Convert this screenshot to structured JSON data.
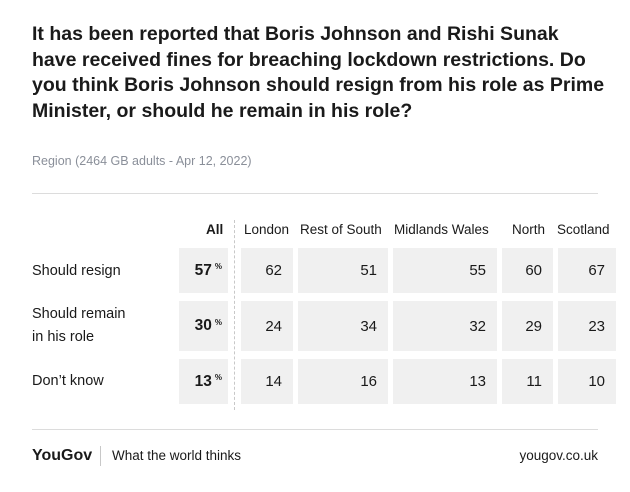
{
  "chart_data": {
    "type": "table",
    "title": "It has been reported that Boris Johnson and Rishi Sunak have received fines for breaching lockdown restrictions. Do you think Boris Johnson should resign from his role as Prime Minister, or should he remain in his role?",
    "subtitle": "Region (2464 GB adults - Apr 12, 2022)",
    "columns": [
      "All",
      "London",
      "Rest of South",
      "Midlands Wales",
      "North",
      "Scotland"
    ],
    "rows": [
      {
        "label": "Should resign",
        "all": "57",
        "values": [
          "62",
          "51",
          "55",
          "60",
          "67"
        ]
      },
      {
        "label": "Should remain in his role",
        "label_lines": [
          "Should remain",
          "in his role"
        ],
        "all": "30",
        "values": [
          "24",
          "34",
          "32",
          "29",
          "23"
        ]
      },
      {
        "label": "Don’t know",
        "all": "13",
        "values": [
          "14",
          "16",
          "13",
          "11",
          "10"
        ]
      }
    ],
    "unit": "%"
  },
  "footer": {
    "brand": "YouGov",
    "tagline": "What the world thinks",
    "url": "yougov.co.uk"
  }
}
